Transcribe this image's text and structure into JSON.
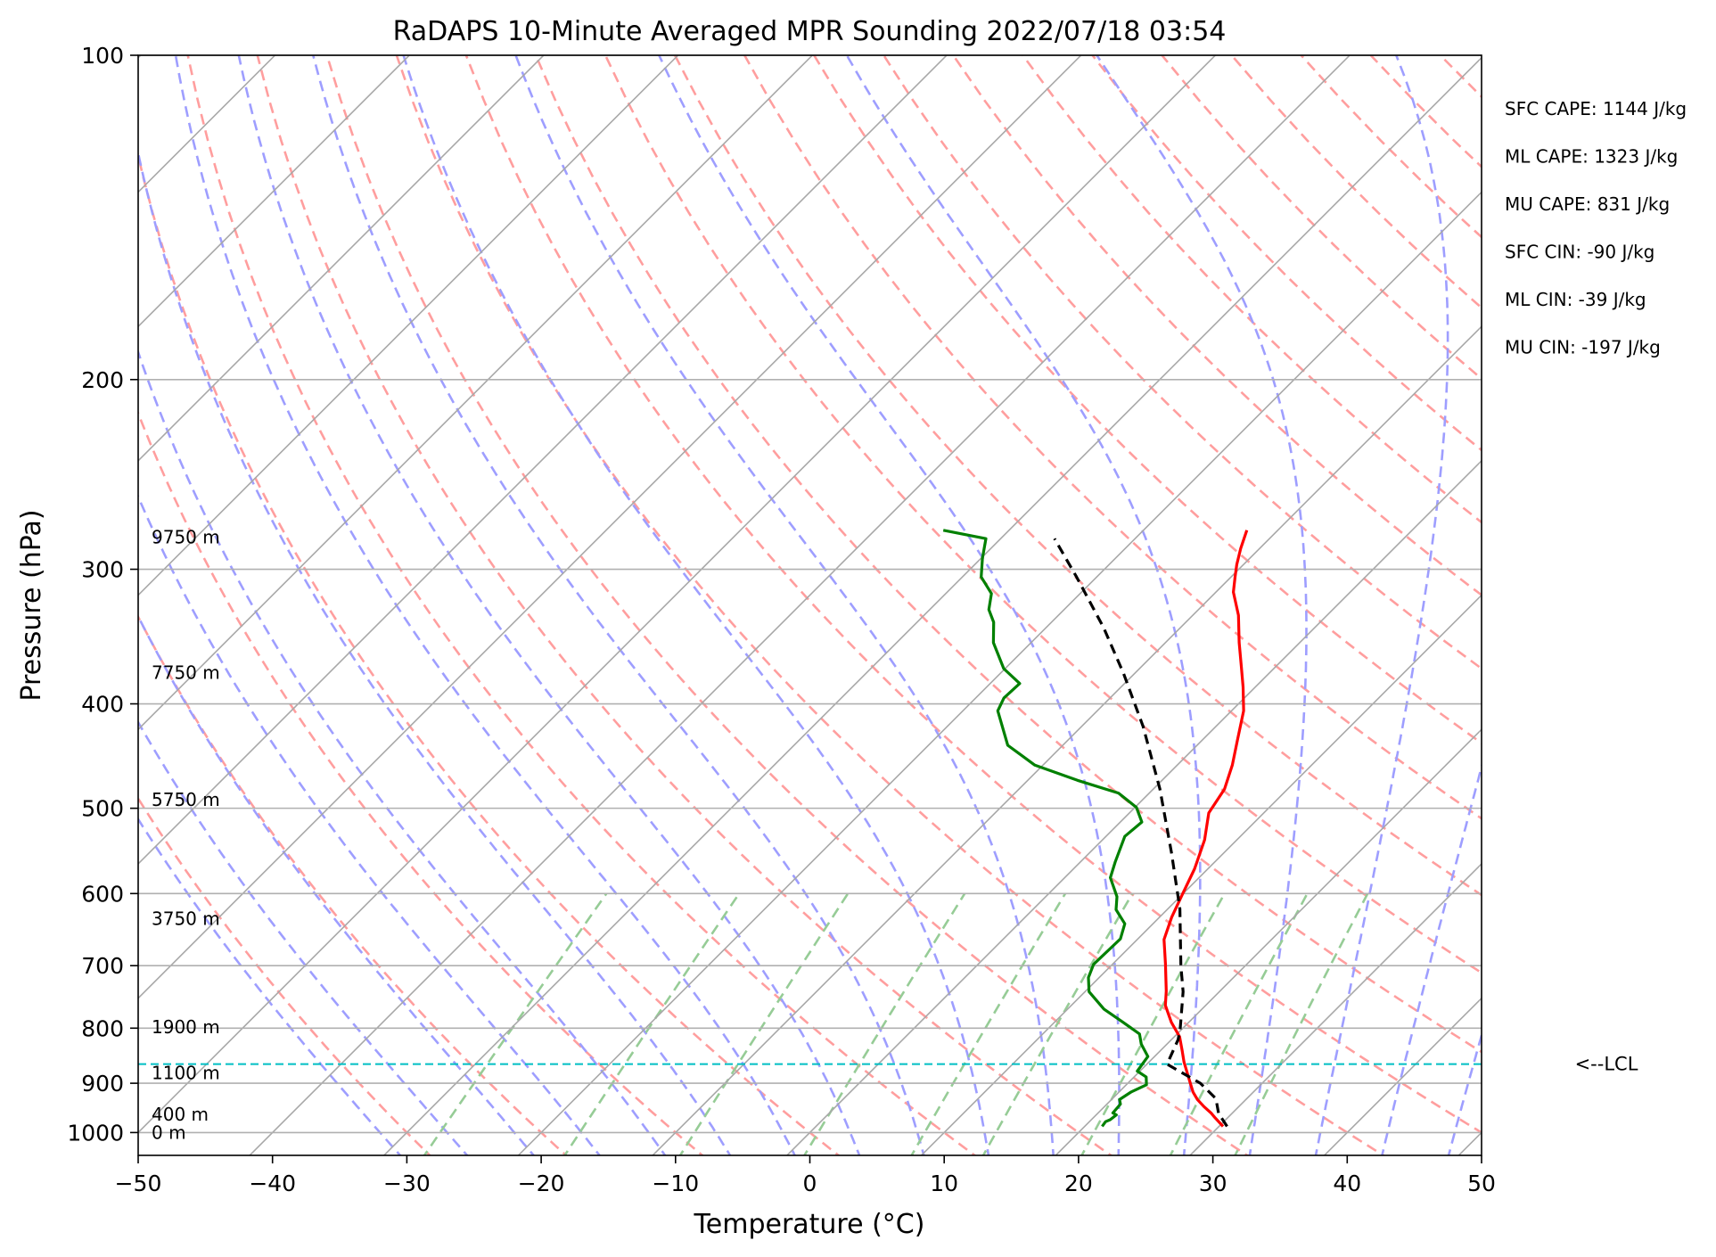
{
  "chart_data": {
    "type": "line",
    "title": "RaDAPS 10-Minute Averaged MPR Sounding 2022/07/18 03:54",
    "xlabel": "Temperature (°C)",
    "ylabel": "Pressure (hPa)",
    "xlim": [
      -50,
      50
    ],
    "ylim": [
      1050,
      100
    ],
    "y_scale": "log",
    "x_ticks": [
      "−50",
      "−40",
      "−30",
      "−20",
      "−10",
      "0",
      "10",
      "20",
      "30",
      "40",
      "50"
    ],
    "y_ticks": [
      {
        "p": 100,
        "label": "100"
      },
      {
        "p": 200,
        "label": "200"
      },
      {
        "p": 300,
        "label": "300"
      },
      {
        "p": 400,
        "label": "400"
      },
      {
        "p": 500,
        "label": "500"
      },
      {
        "p": 600,
        "label": "600"
      },
      {
        "p": 700,
        "label": "700"
      },
      {
        "p": 800,
        "label": "800"
      },
      {
        "p": 900,
        "label": "900"
      },
      {
        "p": 1000,
        "label": "1000"
      }
    ],
    "grid": true,
    "skew_t": true,
    "series": [
      {
        "kind": "temperature",
        "color": "#ff0000",
        "points": [
          [
            30.3,
            987
          ],
          [
            29.0,
            968
          ],
          [
            28.4,
            959
          ],
          [
            27.4,
            946
          ],
          [
            26.4,
            932
          ],
          [
            25.5,
            917
          ],
          [
            24.4,
            895
          ],
          [
            22.6,
            860
          ],
          [
            21.6,
            839
          ],
          [
            20.4,
            815
          ],
          [
            18.7,
            790
          ],
          [
            17.0,
            762
          ],
          [
            16.0,
            739
          ],
          [
            13.9,
            697
          ],
          [
            12.0,
            662
          ],
          [
            10.9,
            631
          ],
          [
            10.0,
            601
          ],
          [
            9.0,
            569
          ],
          [
            7.6,
            535
          ],
          [
            5.9,
            505
          ],
          [
            5.3,
            480
          ],
          [
            4.1,
            456
          ],
          [
            2.6,
            432
          ],
          [
            0.9,
            406
          ],
          [
            -0.9,
            386
          ],
          [
            -2.5,
            370
          ],
          [
            -4.5,
            351
          ],
          [
            -6.6,
            331
          ],
          [
            -8.7,
            315
          ],
          [
            -9.7,
            305
          ],
          [
            -10.5,
            297
          ],
          [
            -11.4,
            287
          ],
          [
            -12.3,
            276
          ]
        ]
      },
      {
        "kind": "dewpoint",
        "color": "#008000",
        "points": [
          [
            21.3,
            987
          ],
          [
            21.2,
            977
          ],
          [
            21.4,
            973
          ],
          [
            21.5,
            963
          ],
          [
            21.1,
            959
          ],
          [
            21.0,
            941
          ],
          [
            20.6,
            932
          ],
          [
            20.9,
            917
          ],
          [
            21.5,
            903
          ],
          [
            20.9,
            888
          ],
          [
            19.8,
            877
          ],
          [
            19.5,
            850
          ],
          [
            18.1,
            828
          ],
          [
            17.2,
            810
          ],
          [
            15.1,
            790
          ],
          [
            12.7,
            768
          ],
          [
            10.3,
            740
          ],
          [
            9.2,
            718
          ],
          [
            8.6,
            698
          ],
          [
            8.7,
            661
          ],
          [
            7.9,
            640
          ],
          [
            6.2,
            621
          ],
          [
            5.3,
            604
          ],
          [
            3.4,
            580
          ],
          [
            2.6,
            561
          ],
          [
            1.4,
            531
          ],
          [
            1.6,
            515
          ],
          [
            0.1,
            499
          ],
          [
            -2.3,
            484
          ],
          [
            -6.3,
            471
          ],
          [
            -10.6,
            456
          ],
          [
            -14.1,
            437
          ],
          [
            -17.4,
            406
          ],
          [
            -17.9,
            395
          ],
          [
            -17.8,
            383
          ],
          [
            -20.1,
            371
          ],
          [
            -22.8,
            351
          ],
          [
            -24.3,
            336
          ],
          [
            -25.6,
            327
          ],
          [
            -26.6,
            316
          ],
          [
            -28.6,
            305
          ],
          [
            -29.9,
            293
          ],
          [
            -31.1,
            281
          ],
          [
            -34.9,
            276
          ]
        ]
      },
      {
        "kind": "parcel",
        "color": "#000000",
        "points": [
          [
            30.6,
            987
          ],
          [
            29.0,
            960
          ],
          [
            27.7,
            930
          ],
          [
            25.4,
            900
          ],
          [
            21.5,
            864
          ],
          [
            20.5,
            820
          ],
          [
            19.8,
            800
          ],
          [
            17.3,
            740
          ],
          [
            15.2,
            700
          ],
          [
            10.9,
            620
          ],
          [
            6.1,
            550
          ],
          [
            0.5,
            480
          ],
          [
            -5.4,
            420
          ],
          [
            -10.8,
            375
          ],
          [
            -15.7,
            340
          ],
          [
            -21.5,
            305
          ],
          [
            -26.0,
            281
          ]
        ]
      }
    ],
    "lcl": {
      "pressure": 864,
      "label": "<--LCL"
    },
    "height_labels": [
      {
        "p": 280,
        "label": "9750 m"
      },
      {
        "p": 374,
        "label": "7750 m"
      },
      {
        "p": 491,
        "label": "5750 m"
      },
      {
        "p": 633,
        "label": "3750 m"
      },
      {
        "p": 798,
        "label": "1900 m"
      },
      {
        "p": 880,
        "label": "1100 m"
      },
      {
        "p": 962,
        "label": "400 m"
      },
      {
        "p": 1000,
        "label": "0 m"
      }
    ],
    "annotations": [
      "SFC CAPE: 1144 J/kg",
      "ML CAPE: 1323 J/kg",
      "MU CAPE: 831 J/kg",
      "SFC CIN: -90 J/kg",
      "ML CIN: -39 J/kg",
      "MU CIN: -197 J/kg"
    ]
  },
  "colors": {
    "isotherm": "#a8a8a8",
    "dry_adiabat": "#ff9e9e",
    "moist_adiabat": "#9e9eff",
    "mixing_ratio": "#96cc96",
    "lcl_line": "#00bfc4"
  }
}
